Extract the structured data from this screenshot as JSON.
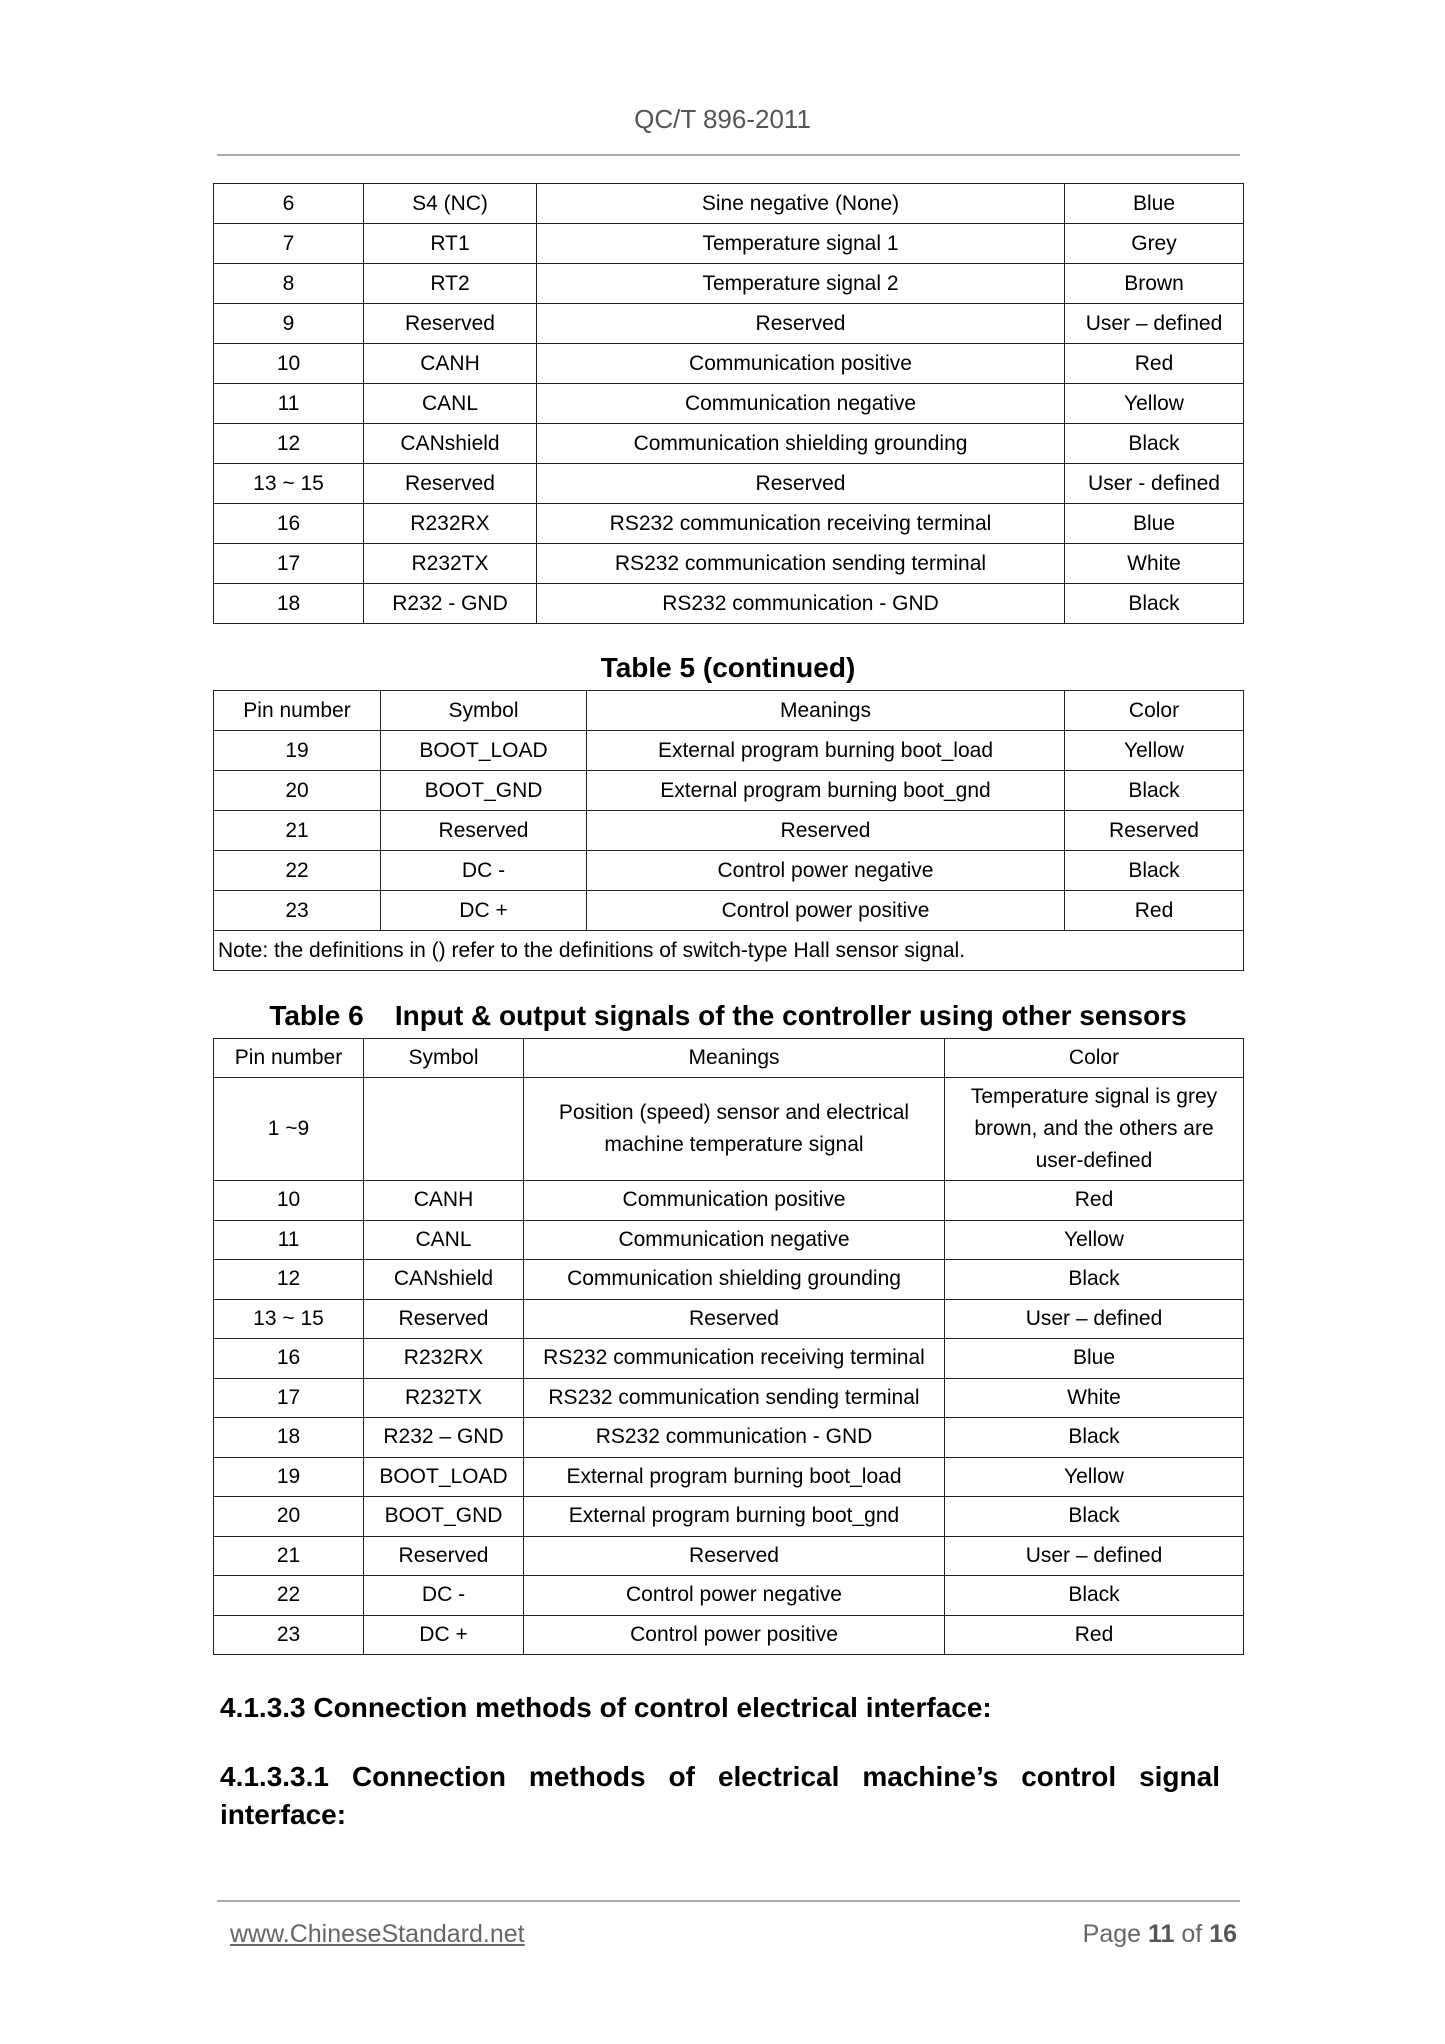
{
  "header": {
    "doc_id": "QC/T 896-2011"
  },
  "table5_top": {
    "rows": [
      [
        "6",
        "S4 (NC)",
        "Sine negative (None)",
        "Blue"
      ],
      [
        "7",
        "RT1",
        "Temperature signal 1",
        "Grey"
      ],
      [
        "8",
        "RT2",
        "Temperature signal 2",
        "Brown"
      ],
      [
        "9",
        "Reserved",
        "Reserved",
        "User – defined"
      ],
      [
        "10",
        "CANH",
        "Communication positive",
        "Red"
      ],
      [
        "11",
        "CANL",
        "Communication negative",
        "Yellow"
      ],
      [
        "12",
        "CANshield",
        "Communication shielding grounding",
        "Black"
      ],
      [
        "13 ~ 15",
        "Reserved",
        "Reserved",
        "User - defined"
      ],
      [
        "16",
        "R232RX",
        "RS232 communication receiving terminal",
        "Blue"
      ],
      [
        "17",
        "R232TX",
        "RS232 communication sending terminal",
        "White"
      ],
      [
        "18",
        "R232 - GND",
        "RS232 communication - GND",
        "Black"
      ]
    ]
  },
  "table5_cont": {
    "caption": "Table 5    (continued)",
    "headers": [
      "Pin number",
      "Symbol",
      "Meanings",
      "Color"
    ],
    "rows": [
      [
        "19",
        "BOOT_LOAD",
        "External program burning boot_load",
        "Yellow"
      ],
      [
        "20",
        "BOOT_GND",
        "External program burning boot_gnd",
        "Black"
      ],
      [
        "21",
        "Reserved",
        "Reserved",
        "Reserved"
      ],
      [
        "22",
        "DC -",
        "Control power negative",
        "Black"
      ],
      [
        "23",
        "DC +",
        "Control power positive",
        "Red"
      ]
    ],
    "note": "Note: the definitions in () refer to the definitions of switch-type Hall sensor signal."
  },
  "table6": {
    "caption": "Table 6    Input & output signals of the controller using other sensors",
    "headers": [
      "Pin number",
      "Symbol",
      "Meanings",
      "Color"
    ],
    "rows": [
      [
        "1 ~9",
        "",
        "Position (speed) sensor and electrical machine temperature signal",
        "Temperature signal is grey brown, and the others are user-defined"
      ],
      [
        "10",
        "CANH",
        "Communication positive",
        "Red"
      ],
      [
        "11",
        "CANL",
        "Communication negative",
        "Yellow"
      ],
      [
        "12",
        "CANshield",
        "Communication shielding grounding",
        "Black"
      ],
      [
        "13 ~ 15",
        "Reserved",
        "Reserved",
        "User – defined"
      ],
      [
        "16",
        "R232RX",
        "RS232 communication receiving terminal",
        "Blue"
      ],
      [
        "17",
        "R232TX",
        "RS232 communication sending terminal",
        "White"
      ],
      [
        "18",
        "R232 – GND",
        "RS232 communication - GND",
        "Black"
      ],
      [
        "19",
        "BOOT_LOAD",
        "External program burning boot_load",
        "Yellow"
      ],
      [
        "20",
        "BOOT_GND",
        "External program burning boot_gnd",
        "Black"
      ],
      [
        "21",
        "Reserved",
        "Reserved",
        "User – defined"
      ],
      [
        "22",
        "DC -",
        "Control power negative",
        "Black"
      ],
      [
        "23",
        "DC +",
        "Control power positive",
        "Red"
      ]
    ]
  },
  "sections": {
    "s4133": "4.1.3.3 Connection methods of control electrical interface:",
    "s41331": "4.1.3.3.1 Connection methods of electrical machine’s control signal interface:"
  },
  "footer": {
    "link": "www.ChineseStandard.net",
    "page_prefix": "Page",
    "page": "11",
    "of": "of",
    "total": "16"
  }
}
